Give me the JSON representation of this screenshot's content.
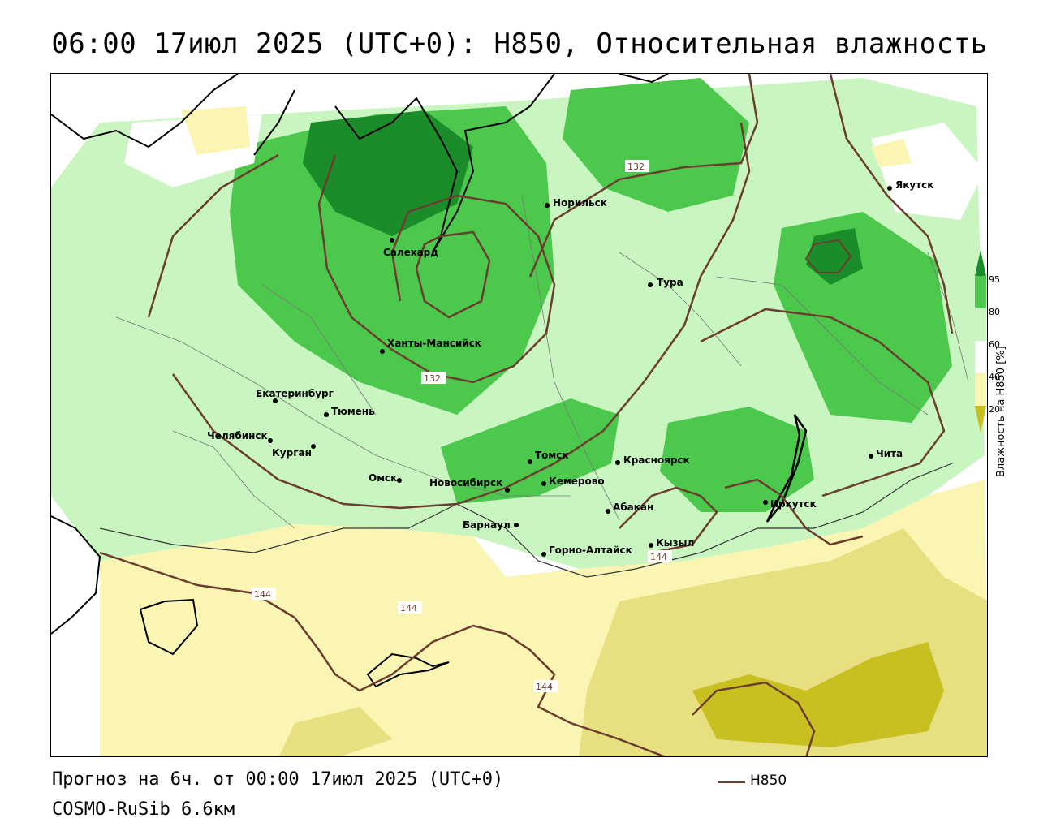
{
  "title": "06:00 17июл 2025 (UTC+0): H850, Относительная влажность",
  "footer": {
    "forecast": "Прогноз на 6ч. от 00:00 17июл 2025 (UTC+0)",
    "model": "COSMO-RuSib 6.6км"
  },
  "series_legend": {
    "name": "H850",
    "color": "#6b3d2e"
  },
  "colorbar": {
    "title": "Влажность на H850 [%]",
    "ticks": [
      "20",
      "40",
      "60",
      "80",
      "95"
    ],
    "colors": {
      "very_dry": "#c8c020",
      "dry": "#e6e080",
      "moderately_dry": "#fbf5b4",
      "neutral": "#ffffff",
      "moist": "#c8f5c0",
      "wet": "#4cc84c",
      "very_wet": "#1a8c2a"
    }
  },
  "cities": [
    {
      "name": "Якутск"
    },
    {
      "name": "Норильск"
    },
    {
      "name": "Салехард"
    },
    {
      "name": "Тура"
    },
    {
      "name": "Ханты-Мансийск"
    },
    {
      "name": "Екатеринбург"
    },
    {
      "name": "Тюмень"
    },
    {
      "name": "Челябинск"
    },
    {
      "name": "Курган"
    },
    {
      "name": "Омск"
    },
    {
      "name": "Томск"
    },
    {
      "name": "Красноярск"
    },
    {
      "name": "Новосибирск"
    },
    {
      "name": "Кемерово"
    },
    {
      "name": "Абакан"
    },
    {
      "name": "Барнаул"
    },
    {
      "name": "Кызыл"
    },
    {
      "name": "Горно-Алтайск"
    },
    {
      "name": "Иркутск"
    },
    {
      "name": "Чита"
    }
  ],
  "contour_labels": [
    "132",
    "132",
    "144",
    "144",
    "144",
    "144"
  ]
}
